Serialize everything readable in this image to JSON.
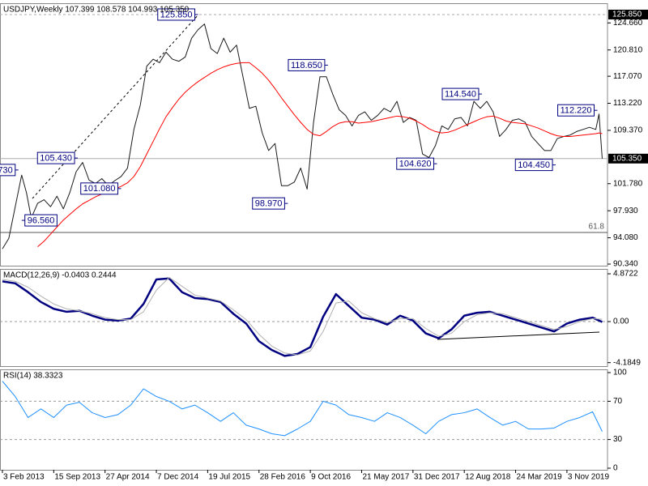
{
  "chart_data": [
    {
      "type": "line",
      "title": "USDJPY,Weekly 107.399 108.578 104.993 105.350",
      "x": [
        0,
        4,
        8,
        12,
        15,
        18,
        22,
        26,
        30,
        34,
        38,
        42,
        46,
        50,
        54,
        58,
        62,
        66,
        70,
        74,
        78,
        82,
        86,
        90,
        94,
        98,
        102,
        106,
        110,
        114,
        118,
        122,
        126,
        130,
        134,
        138,
        142,
        146,
        150,
        154,
        158,
        162,
        166,
        170,
        174,
        178,
        182,
        186,
        190,
        194,
        198,
        202,
        206,
        210,
        214,
        218,
        222,
        226,
        230,
        234,
        238,
        242,
        246,
        250,
        254,
        258,
        262,
        266,
        270,
        274,
        278,
        282,
        286,
        290,
        294,
        298,
        302,
        306,
        310,
        314,
        318,
        322,
        326,
        330,
        334,
        338,
        342,
        346,
        350,
        354,
        358,
        362,
        366,
        370,
        372,
        374
      ],
      "xlim": [
        -1.5,
        377.3
      ],
      "ylim": [
        90.11,
        127.46
      ],
      "yticks": [
        {
          "value": 124.66,
          "label": "124.660"
        },
        {
          "value": 120.81,
          "label": "120.810"
        },
        {
          "value": 117.07,
          "label": "117.070"
        },
        {
          "value": 113.22,
          "label": "113.220"
        },
        {
          "value": 109.37,
          "label": "109.370"
        },
        {
          "value": 101.78,
          "label": "101.780"
        },
        {
          "value": 97.93,
          "label": "97.930"
        },
        {
          "value": 94.08,
          "label": "94.080"
        },
        {
          "value": 90.34,
          "label": "90.340"
        }
      ],
      "series": [
        {
          "color": "#1a1a1a",
          "values": [
            92.5,
            94,
            98.5,
            103,
            100.5,
            96.9,
            99,
            99.5,
            98.5,
            100,
            98.2,
            100.5,
            103.5,
            104.8,
            102.3,
            101.8,
            102.5,
            101.5,
            102.2,
            102.8,
            104,
            109.5,
            113,
            118.5,
            119.5,
            119,
            120.5,
            119.5,
            119.2,
            119.8,
            122.5,
            123.7,
            124.5,
            121,
            120.3,
            122.5,
            120.5,
            121.5,
            117,
            112.5,
            112.8,
            109,
            106.5,
            107.5,
            101.5,
            101.5,
            102,
            104,
            101,
            110.5,
            117,
            117,
            114.5,
            112.3,
            111.5,
            110,
            111.5,
            112,
            110.8,
            111.5,
            112.5,
            112,
            113.5,
            110.5,
            111.2,
            110.8,
            106,
            105.5,
            107.2,
            110,
            109.5,
            111,
            111.2,
            110,
            113.5,
            112.5,
            113.5,
            112,
            108.5,
            109.5,
            110.8,
            111,
            110.5,
            108.5,
            107.5,
            106.5,
            106.5,
            108.2,
            108.5,
            108.7,
            109.2,
            109.5,
            109.8,
            109.5,
            111.7,
            105.35
          ]
        },
        {
          "color": "#ff0000",
          "values": [
            null,
            null,
            null,
            null,
            null,
            null,
            92.8,
            93.6,
            94.6,
            95.6,
            96.6,
            97.4,
            98.2,
            98.9,
            99.4,
            99.9,
            100.3,
            100.7,
            101,
            101.4,
            101.9,
            102.8,
            104.2,
            106,
            107.8,
            109.6,
            111.3,
            112.6,
            113.8,
            114.8,
            115.6,
            116.3,
            116.9,
            117.5,
            118,
            118.4,
            118.7,
            118.9,
            119,
            119,
            118.3,
            117.5,
            116.5,
            115.3,
            114,
            112.8,
            111.6,
            110.5,
            109.5,
            108.8,
            108.6,
            109.2,
            109.9,
            110.4,
            110.6,
            110.6,
            110.4,
            110.5,
            110.6,
            110.8,
            111,
            111.2,
            111.4,
            111.3,
            111.1,
            110.7,
            110.2,
            109.6,
            109.2,
            109,
            109.1,
            109.4,
            109.8,
            110.2,
            110.6,
            111,
            111.3,
            111.4,
            111.1,
            110.7,
            110.5,
            110.4,
            110.3,
            110,
            109.7,
            109.3,
            108.9,
            108.6,
            108.5,
            108.5,
            108.6,
            108.7,
            108.8,
            108.9,
            109,
            108.9
          ]
        }
      ],
      "price_lines": [
        {
          "value": 125.85,
          "label": "125.850",
          "style": "dashed",
          "marker": "box"
        },
        {
          "value": 105.35,
          "label": "105.350",
          "style": "solid",
          "marker": "box"
        },
        {
          "value": 94.84,
          "label": "61.8",
          "style": "solid",
          "marker": "text"
        }
      ],
      "annotations": [
        {
          "x": 10,
          "value": 103.73,
          "label": "730"
        },
        {
          "x": 122,
          "value": 125.85,
          "label": "125.850"
        },
        {
          "x": 47,
          "value": 105.43,
          "label": "105.430"
        },
        {
          "x": 74,
          "value": 101.08,
          "label": "101.080"
        },
        {
          "x": 12,
          "value": 96.56,
          "label": "96.560"
        },
        {
          "x": 203,
          "value": 118.65,
          "label": "118.650"
        },
        {
          "x": 178,
          "value": 98.97,
          "label": "98.970"
        },
        {
          "x": 271,
          "value": 104.62,
          "label": "104.620"
        },
        {
          "x": 299,
          "value": 114.54,
          "label": "114.540"
        },
        {
          "x": 345,
          "value": 104.45,
          "label": "104.450"
        },
        {
          "x": 371,
          "value": 112.22,
          "label": "112.220"
        }
      ]
    },
    {
      "type": "line",
      "title": "MACD(12,26,9) -0.0403 0.2444",
      "x": [
        0,
        8,
        16,
        24,
        32,
        40,
        48,
        56,
        64,
        72,
        80,
        88,
        96,
        104,
        112,
        120,
        128,
        136,
        144,
        152,
        160,
        168,
        176,
        184,
        192,
        200,
        208,
        216,
        224,
        232,
        240,
        248,
        256,
        264,
        272,
        280,
        288,
        296,
        304,
        312,
        320,
        328,
        336,
        344,
        352,
        360,
        368,
        374
      ],
      "xlim": [
        -1.5,
        377.3
      ],
      "ylim": [
        -4.54,
        5.37
      ],
      "yticks": [
        4.8722,
        {
          "value": 0,
          "label": "0.00"
        },
        -4.1849
      ],
      "levels": [
        0
      ],
      "series": [
        {
          "color": "#000080",
          "width": 2.5,
          "values": [
            4.1,
            3.9,
            3.0,
            2.0,
            1.3,
            1.0,
            1.1,
            0.6,
            0.2,
            0.1,
            0.3,
            1.8,
            4.3,
            4.4,
            3.0,
            2.4,
            2.3,
            2.0,
            0.8,
            -0.2,
            -2.0,
            -2.9,
            -3.5,
            -3.3,
            -2.6,
            0.5,
            2.8,
            1.6,
            0.4,
            0.2,
            -0.3,
            0.6,
            0.1,
            -1.2,
            -1.7,
            -0.8,
            0.6,
            0.9,
            1.0,
            0.6,
            0.2,
            -0.2,
            -0.6,
            -1.0,
            -0.2,
            0.2,
            0.4,
            -0.0403
          ]
        },
        {
          "color": "#b0b0b0",
          "width": 1,
          "values": [
            4.3,
            4.1,
            3.5,
            2.6,
            1.8,
            1.3,
            1.1,
            0.8,
            0.4,
            0.2,
            0.2,
            1.0,
            3.2,
            4.5,
            3.6,
            2.7,
            2.4,
            2.1,
            1.2,
            0.2,
            -1.3,
            -2.5,
            -3.2,
            -3.4,
            -3.0,
            -1.0,
            1.9,
            2.1,
            0.9,
            0.3,
            -0.1,
            0.3,
            0.3,
            -0.7,
            -1.5,
            -1.2,
            0.0,
            0.7,
            0.9,
            0.8,
            0.4,
            0.0,
            -0.4,
            -0.8,
            -0.5,
            0.0,
            0.3,
            0.2444
          ]
        }
      ]
    },
    {
      "type": "line",
      "title": "RSI(14) 38.3323",
      "x": [
        0,
        8,
        16,
        24,
        32,
        40,
        48,
        56,
        64,
        72,
        80,
        88,
        96,
        104,
        112,
        120,
        128,
        136,
        144,
        152,
        160,
        168,
        176,
        184,
        192,
        200,
        208,
        216,
        224,
        232,
        240,
        248,
        256,
        264,
        272,
        280,
        288,
        296,
        304,
        312,
        320,
        328,
        336,
        344,
        352,
        360,
        368,
        374
      ],
      "xlim": [
        -1.5,
        377.3
      ],
      "ylim": [
        -1.7,
        103.4
      ],
      "yticks": [
        100,
        70,
        30,
        0
      ],
      "levels": [
        70,
        30
      ],
      "xticks": [
        {
          "value": 0,
          "label": "3 Feb 2013"
        },
        {
          "value": 32,
          "label": "15 Sep 2013"
        },
        {
          "value": 64,
          "label": "27 Apr 2014"
        },
        {
          "value": 96,
          "label": "7 Dec 2014"
        },
        {
          "value": 128,
          "label": "19 Jul 2015"
        },
        {
          "value": 160,
          "label": "28 Feb 2016"
        },
        {
          "value": 192,
          "label": "9 Oct 2016"
        },
        {
          "value": 224,
          "label": "21 May 2017"
        },
        {
          "value": 256,
          "label": "31 Dec 2017"
        },
        {
          "value": 288,
          "label": "12 Aug 2018"
        },
        {
          "value": 320,
          "label": "24 Mar 2019"
        },
        {
          "value": 352,
          "label": "3 Nov 2019"
        }
      ],
      "series": [
        {
          "color": "#1e90ff",
          "width": 1,
          "values": [
            91,
            75,
            53,
            62,
            53,
            66,
            69,
            58,
            53,
            56,
            66,
            83,
            75,
            70,
            62,
            66,
            58,
            49,
            58,
            45,
            41,
            36,
            34,
            41,
            49,
            70,
            66,
            56,
            53,
            49,
            58,
            53,
            45,
            36,
            49,
            56,
            58,
            62,
            53,
            45,
            49,
            41,
            41,
            42,
            49,
            53,
            59,
            38.33
          ]
        }
      ]
    }
  ]
}
